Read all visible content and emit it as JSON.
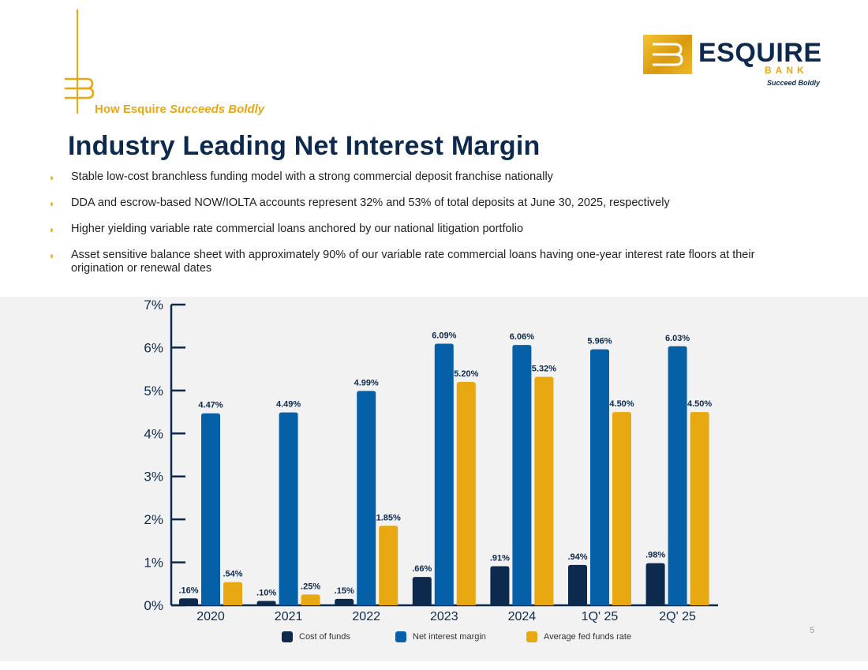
{
  "header": {
    "section_prefix": "How Esquire ",
    "section_emphasis": "Succeeds Boldly",
    "title": "Industry Leading Net Interest Margin"
  },
  "logo": {
    "name": "ESQUIRE",
    "bank": "BANK",
    "tagline": "Succeed Boldly"
  },
  "bullets": [
    "Stable low-cost branchless funding model with a strong commercial deposit franchise nationally",
    "DDA and escrow-based NOW/IOLTA accounts represent 32% and 53% of total deposits at June 30, 2025, respectively",
    "Higher yielding variable rate commercial loans anchored by our national litigation portfolio",
    "Asset sensitive balance sheet with approximately 90% of our variable rate commercial loans having one-year interest rate floors at their origination or renewal dates"
  ],
  "chart_data": {
    "type": "bar",
    "categories": [
      "2020",
      "2021",
      "2022",
      "2023",
      "2024",
      "1Q' 25",
      "2Q' 25"
    ],
    "series": [
      {
        "name": "Cost of funds",
        "color": "#0d2a4e",
        "values": [
          0.16,
          0.1,
          0.15,
          0.66,
          0.91,
          0.94,
          0.98
        ],
        "labels": [
          ".16%",
          ".10%",
          ".15%",
          ".66%",
          ".91%",
          ".94%",
          ".98%"
        ]
      },
      {
        "name": "Net interest margin",
        "color": "#0660a8",
        "values": [
          4.47,
          4.49,
          4.99,
          6.09,
          6.06,
          5.96,
          6.03
        ],
        "labels": [
          "4.47%",
          "4.49%",
          "4.99%",
          "6.09%",
          "6.06%",
          "5.96%",
          "6.03%"
        ]
      },
      {
        "name": "Average fed funds rate",
        "color": "#e8a812",
        "values": [
          0.54,
          0.25,
          1.85,
          5.2,
          5.32,
          4.5,
          4.5
        ],
        "labels": [
          ".54%",
          ".25%",
          "1.85%",
          "5.20%",
          "5.32%",
          "4.50%",
          "4.50%"
        ]
      }
    ],
    "yticks": [
      "0%",
      "1%",
      "2%",
      "3%",
      "4%",
      "5%",
      "6%",
      "7%"
    ],
    "ylim": [
      0,
      7
    ],
    "legend_position": "bottom"
  },
  "footer": {
    "page_number": "5"
  },
  "colors": {
    "navy": "#0d2a4e",
    "blue": "#0660a8",
    "gold": "#e8a812"
  }
}
